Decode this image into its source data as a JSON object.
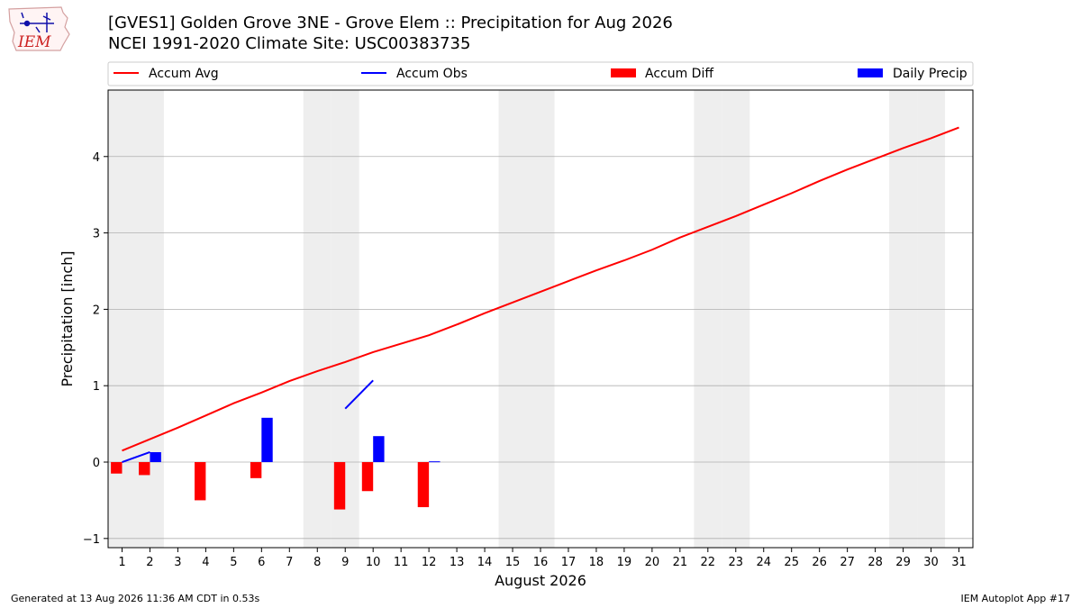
{
  "logo": {
    "text": "IEM"
  },
  "title": {
    "line1": "[GVES1] Golden Grove 3NE - Grove Elem :: Precipitation for Aug 2026",
    "line2": "NCEI 1991-2020 Climate Site: USC00383735"
  },
  "footer": {
    "left": "Generated at 13 Aug 2026 11:36 AM CDT in 0.53s",
    "right": "IEM Autoplot App #17"
  },
  "colors": {
    "accum_avg": "#ff0000",
    "accum_obs": "#0000ff",
    "accum_diff": "#ff0000",
    "daily_precip": "#0000ff",
    "weekend_band": "#eeeeee",
    "grid": "#b0b0b0"
  },
  "chart_data": {
    "type": "bar",
    "xlabel": "August 2026",
    "ylabel": "Precipitation [inch]",
    "xlim": [
      0.5,
      31.5
    ],
    "ylim": [
      -1.12,
      4.87
    ],
    "yticks": [
      -1,
      0,
      1,
      2,
      3,
      4
    ],
    "xticks": [
      1,
      2,
      3,
      4,
      5,
      6,
      7,
      8,
      9,
      10,
      11,
      12,
      13,
      14,
      15,
      16,
      17,
      18,
      19,
      20,
      21,
      22,
      23,
      24,
      25,
      26,
      27,
      28,
      29,
      30,
      31
    ],
    "grid": "horizontal",
    "legend": {
      "placement": "top",
      "entries": [
        "Accum Avg",
        "Accum Obs",
        "Accum Diff",
        "Daily Precip"
      ]
    },
    "weekend_days": [
      1,
      2,
      8,
      9,
      15,
      16,
      22,
      23,
      29,
      30
    ],
    "series": [
      {
        "name": "Accum Avg",
        "kind": "line",
        "x": [
          1,
          2,
          3,
          4,
          5,
          6,
          7,
          8,
          9,
          10,
          11,
          12,
          13,
          14,
          15,
          16,
          17,
          18,
          19,
          20,
          21,
          22,
          23,
          24,
          25,
          26,
          27,
          28,
          29,
          30,
          31
        ],
        "values": [
          0.15,
          0.3,
          0.45,
          0.61,
          0.77,
          0.91,
          1.06,
          1.19,
          1.31,
          1.44,
          1.55,
          1.66,
          1.8,
          1.95,
          2.09,
          2.23,
          2.37,
          2.51,
          2.64,
          2.78,
          2.94,
          3.08,
          3.22,
          3.37,
          3.52,
          3.68,
          3.83,
          3.97,
          4.11,
          4.24,
          4.38
        ]
      },
      {
        "name": "Accum Obs",
        "kind": "line",
        "segments": [
          {
            "x": [
              1,
              2
            ],
            "values": [
              0.0,
              0.13
            ]
          },
          {
            "x": [
              9,
              10
            ],
            "values": [
              0.7,
              1.07
            ]
          }
        ]
      },
      {
        "name": "Accum Diff",
        "kind": "bar",
        "x": [
          1,
          2,
          4,
          6,
          9,
          10,
          12
        ],
        "values": [
          -0.15,
          -0.17,
          -0.5,
          -0.21,
          -0.62,
          -0.38,
          -0.59
        ]
      },
      {
        "name": "Daily Precip",
        "kind": "bar",
        "x": [
          2,
          6,
          10,
          12
        ],
        "values": [
          0.13,
          0.58,
          0.34,
          0.01
        ]
      }
    ]
  }
}
